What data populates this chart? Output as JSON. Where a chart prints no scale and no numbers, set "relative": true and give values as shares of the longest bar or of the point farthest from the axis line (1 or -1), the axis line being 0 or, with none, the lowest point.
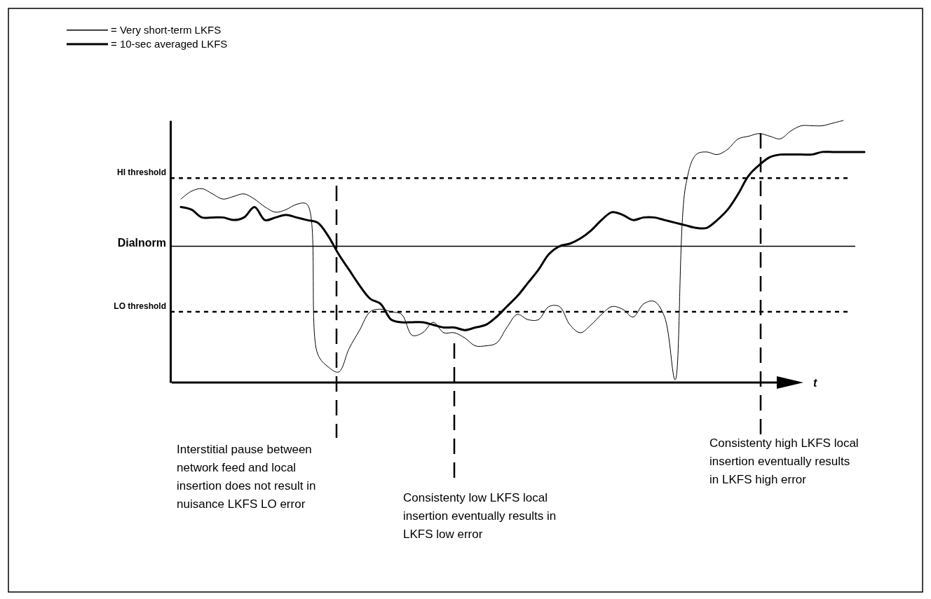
{
  "chart_data": {
    "type": "line",
    "relative": true,
    "xlabel": "t",
    "legend": "top left",
    "line_style": "solid",
    "categories": [
      null,
      null,
      null,
      null,
      null,
      null,
      null,
      null,
      null,
      null,
      null,
      null,
      null,
      null,
      null,
      null,
      null,
      null,
      null,
      null,
      null,
      null,
      null,
      null,
      null,
      null,
      null,
      null,
      null,
      null,
      null,
      null,
      null,
      null,
      null,
      null,
      null,
      null,
      null,
      null,
      null,
      null,
      null,
      null,
      null,
      null,
      null,
      null,
      null,
      null,
      null,
      null,
      null,
      null,
      null,
      null,
      null,
      null,
      null,
      null,
      null,
      null,
      null,
      null,
      null,
      null,
      null
    ],
    "series": [
      {
        "name": "= Very short-term LKFS",
        "color": "#000000",
        "values": [
          null,
          0.7,
          0.73,
          0.74,
          0.72,
          0.7,
          0.71,
          0.72,
          0.7,
          0.67,
          0.65,
          0.66,
          0.68,
          0.68,
          0.11,
          0.06,
          0.04,
          0.13,
          0.2,
          0.27,
          0.28,
          0.27,
          0.26,
          0.18,
          0.19,
          0.23,
          0.19,
          0.19,
          0.17,
          0.14,
          0.14,
          0.15,
          0.21,
          0.26,
          0.24,
          0.24,
          0.29,
          0.29,
          0.22,
          0.19,
          0.22,
          0.26,
          0.29,
          0.28,
          0.25,
          0.3,
          0.31,
          0.25,
          0.01,
          0.75,
          0.87,
          0.88,
          0.87,
          0.89,
          0.93,
          0.94,
          0.95,
          0.94,
          0.93,
          0.96,
          0.98,
          0.98,
          0.98,
          0.99,
          1.0,
          null,
          null
        ]
      },
      {
        "name": "= 10-sec averaged LKFS",
        "color": "#000000",
        "values": [
          null,
          0.67,
          0.66,
          0.63,
          0.63,
          0.63,
          0.62,
          0.63,
          0.67,
          0.62,
          0.63,
          0.64,
          0.63,
          0.62,
          0.61,
          0.56,
          0.49,
          0.43,
          0.37,
          0.32,
          0.3,
          0.24,
          0.23,
          0.23,
          0.23,
          0.22,
          0.21,
          0.21,
          0.2,
          0.21,
          0.22,
          0.25,
          0.29,
          0.33,
          0.38,
          0.43,
          0.49,
          0.52,
          0.53,
          0.55,
          0.58,
          0.62,
          0.65,
          0.64,
          0.62,
          0.63,
          0.63,
          0.62,
          0.61,
          0.6,
          0.59,
          0.59,
          0.62,
          0.66,
          0.72,
          0.79,
          0.83,
          0.86,
          0.87,
          0.87,
          0.87,
          0.87,
          0.88,
          0.88,
          0.88,
          0.88,
          0.88
        ]
      }
    ],
    "ref_lines": [
      {
        "axis": "y",
        "value": 0.78,
        "label": "HI threshold",
        "line_style": "dotted"
      },
      {
        "axis": "y",
        "value": 0.52,
        "label": "Dialnorm",
        "line_style": "solid"
      },
      {
        "axis": "y",
        "value": 0.27,
        "label": "LO threshold",
        "line_style": "dotted"
      }
    ],
    "annotations": [
      "Interstitial pause between network feed and local insertion does not result in nuisance LKFS LO error",
      "Consistenty low LKFS local insertion eventually results in LKFS low error",
      "Consistenty high LKFS local insertion eventually results in LKFS high error"
    ]
  }
}
